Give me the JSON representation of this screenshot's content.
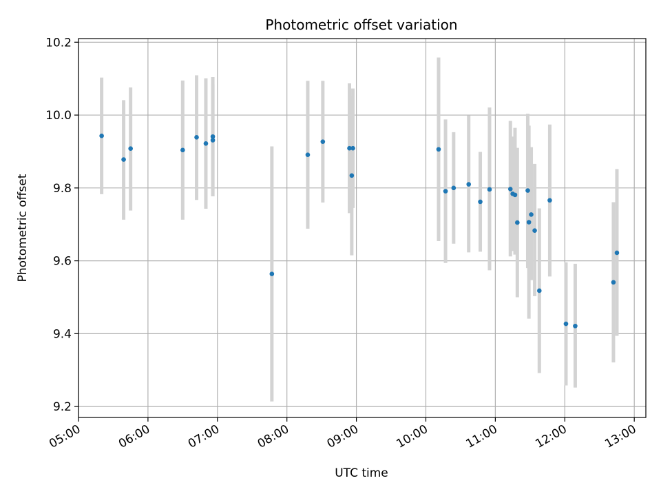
{
  "chart_data": {
    "type": "scatter",
    "title": "Photometric offset variation",
    "xlabel": "UTC time",
    "ylabel": "Photometric offset",
    "xlim": [
      "05:00",
      "13:10"
    ],
    "ylim": [
      9.17,
      10.21
    ],
    "xticks": [
      "05:00",
      "06:00",
      "07:00",
      "08:00",
      "09:00",
      "10:00",
      "11:00",
      "12:00",
      "13:00"
    ],
    "yticks": [
      "9.2",
      "9.4",
      "9.6",
      "9.8",
      "10.0",
      "10.2"
    ],
    "grid": true,
    "marker_color": "#1f77b4",
    "errorbar_color": "#d3d3d3",
    "points": [
      {
        "x": "05:20",
        "y": 9.943,
        "ylo": 9.783,
        "yhi": 10.103
      },
      {
        "x": "05:39",
        "y": 9.878,
        "ylo": 9.713,
        "yhi": 10.041
      },
      {
        "x": "05:45",
        "y": 9.908,
        "ylo": 9.738,
        "yhi": 10.076
      },
      {
        "x": "06:30",
        "y": 9.904,
        "ylo": 9.713,
        "yhi": 10.095
      },
      {
        "x": "06:42",
        "y": 9.939,
        "ylo": 9.767,
        "yhi": 10.109
      },
      {
        "x": "06:50",
        "y": 9.922,
        "ylo": 9.743,
        "yhi": 10.101
      },
      {
        "x": "06:56",
        "y": 9.941,
        "ylo": 9.777,
        "yhi": 10.104
      },
      {
        "x": "06:56",
        "y": 9.931,
        "ylo": 9.777,
        "yhi": 10.085
      },
      {
        "x": "07:47",
        "y": 9.564,
        "ylo": 9.214,
        "yhi": 9.914
      },
      {
        "x": "08:18",
        "y": 9.891,
        "ylo": 9.688,
        "yhi": 10.094
      },
      {
        "x": "08:31",
        "y": 9.927,
        "ylo": 9.76,
        "yhi": 10.094
      },
      {
        "x": "08:54",
        "y": 9.909,
        "ylo": 9.731,
        "yhi": 10.087
      },
      {
        "x": "08:56",
        "y": 9.834,
        "ylo": 9.615,
        "yhi": 10.053
      },
      {
        "x": "08:57",
        "y": 9.909,
        "ylo": 9.745,
        "yhi": 10.073
      },
      {
        "x": "10:11",
        "y": 9.906,
        "ylo": 9.654,
        "yhi": 10.158
      },
      {
        "x": "10:17",
        "y": 9.791,
        "ylo": 9.594,
        "yhi": 9.988
      },
      {
        "x": "10:24",
        "y": 9.8,
        "ylo": 9.647,
        "yhi": 9.953
      },
      {
        "x": "10:37",
        "y": 9.81,
        "ylo": 9.623,
        "yhi": 9.999
      },
      {
        "x": "10:47",
        "y": 9.762,
        "ylo": 9.625,
        "yhi": 9.899
      },
      {
        "x": "10:55",
        "y": 9.796,
        "ylo": 9.574,
        "yhi": 10.021
      },
      {
        "x": "11:13",
        "y": 9.797,
        "ylo": 9.612,
        "yhi": 9.984
      },
      {
        "x": "11:15",
        "y": 9.784,
        "ylo": 9.627,
        "yhi": 9.941
      },
      {
        "x": "11:17",
        "y": 9.781,
        "ylo": 9.617,
        "yhi": 9.965
      },
      {
        "x": "11:19",
        "y": 9.705,
        "ylo": 9.5,
        "yhi": 9.91
      },
      {
        "x": "11:28",
        "y": 9.793,
        "ylo": 9.58,
        "yhi": 10.004
      },
      {
        "x": "11:29",
        "y": 9.706,
        "ylo": 9.441,
        "yhi": 9.971
      },
      {
        "x": "11:31",
        "y": 9.727,
        "ylo": 9.547,
        "yhi": 9.912
      },
      {
        "x": "11:34",
        "y": 9.683,
        "ylo": 9.503,
        "yhi": 9.866
      },
      {
        "x": "11:38",
        "y": 9.518,
        "ylo": 9.292,
        "yhi": 9.744
      },
      {
        "x": "11:47",
        "y": 9.766,
        "ylo": 9.557,
        "yhi": 9.974
      },
      {
        "x": "12:01",
        "y": 9.427,
        "ylo": 9.258,
        "yhi": 9.596
      },
      {
        "x": "12:09",
        "y": 9.421,
        "ylo": 9.252,
        "yhi": 9.592
      },
      {
        "x": "12:42",
        "y": 9.541,
        "ylo": 9.321,
        "yhi": 9.761
      },
      {
        "x": "12:45",
        "y": 9.622,
        "ylo": 9.394,
        "yhi": 9.852
      }
    ]
  }
}
